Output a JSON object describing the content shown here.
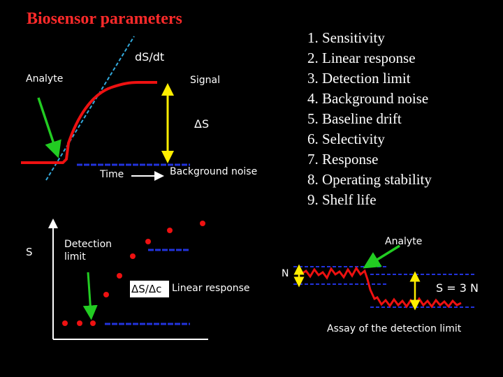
{
  "title": "Biosensor parameters",
  "top_diagram": {
    "slope_label": "dS/dt",
    "analyte_label": "Analyte",
    "signal_label": "Signal",
    "delta_s_label": "ΔS",
    "time_label": "Time",
    "background_noise_label": "Background noise"
  },
  "parameters": [
    "1. Sensitivity",
    "2. Linear response",
    "3. Detection limit",
    "4. Background noise",
    "5. Baseline drift",
    "6. Selectivity",
    "7. Response",
    "8. Operating stability",
    "9. Shelf life"
  ],
  "calibration_diagram": {
    "s_axis_label": "S",
    "detection_limit_label": "Detection limit",
    "ratio_label": "ΔS/Δc",
    "linear_response_label": "Linear response"
  },
  "detection_limit_assay": {
    "analyte_label": "Analyte",
    "n_label": "N",
    "s_equals_label": "S = 3 N",
    "caption": "Assay of the detection limit"
  },
  "colors": {
    "background": "#000000",
    "title": "#ff2a2a",
    "signal": "#ee1111",
    "arrow_green": "#22cc22",
    "arrow_yellow": "#ffee00",
    "baseline_blue": "#2233dd",
    "slope_cyan": "#33aadd"
  }
}
